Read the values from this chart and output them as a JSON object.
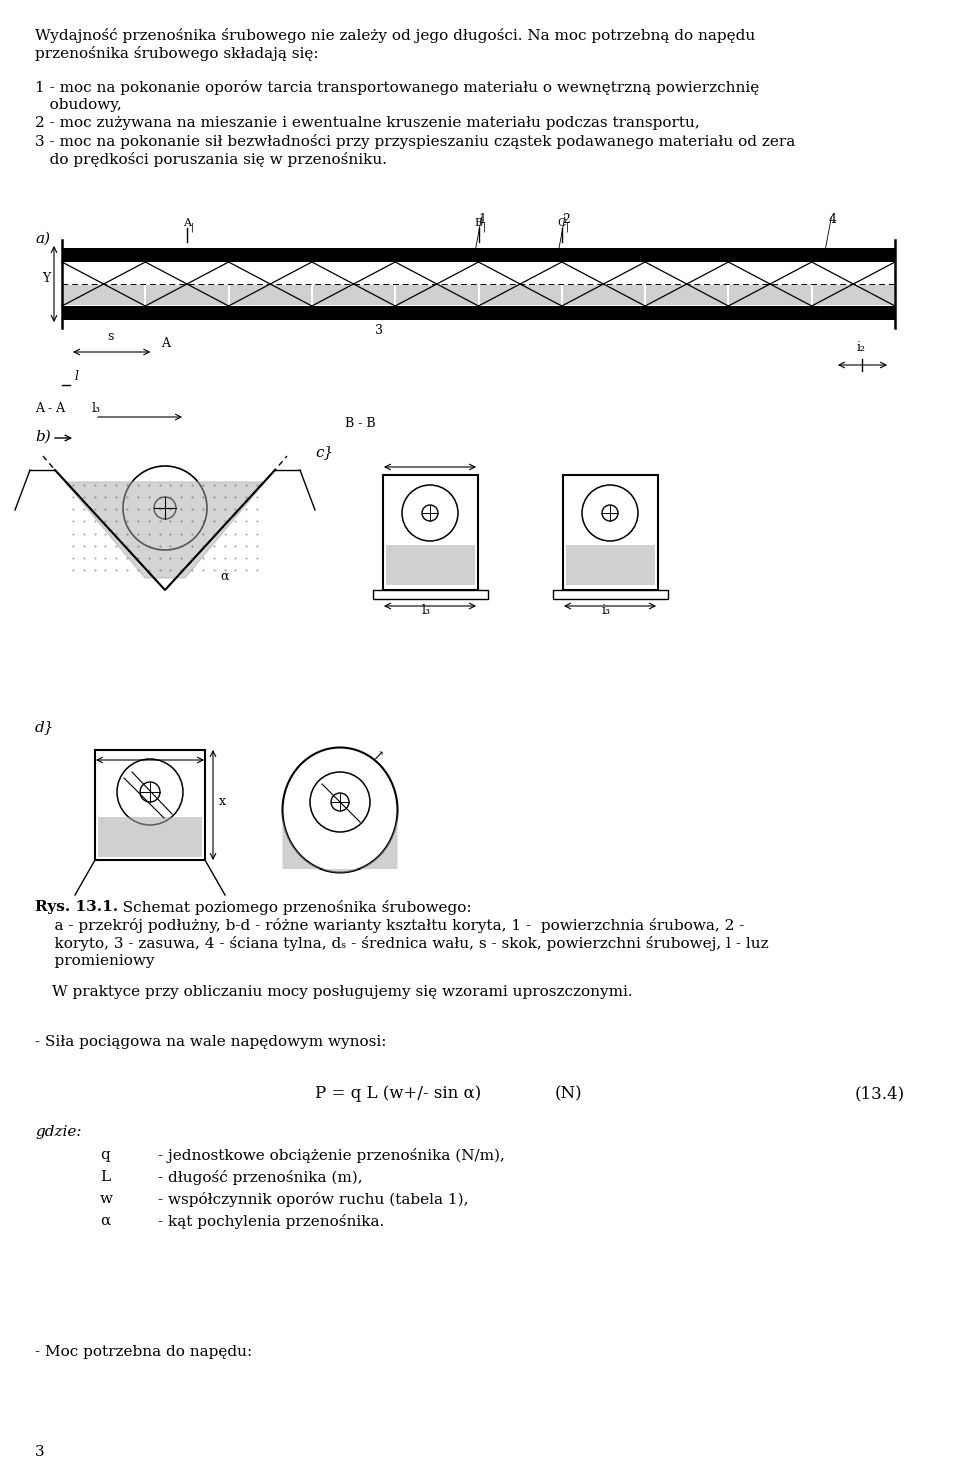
{
  "bg_color": "#ffffff",
  "text_color": "#000000",
  "page_width": 9.6,
  "page_height": 14.64,
  "dpi": 100,
  "top_paragraph_line1": "Wydajność przenośnika śrubowego nie zależy od jego długości. Na moc potrzebną do napędu",
  "top_paragraph_line2": "przenośnika śrubowego składają się:",
  "item1_line1": "1 - moc na pokonanie oporów tarcia transportowanego materiału o wewnętrzną powierzchnię",
  "item1_line2": "   obudowy,",
  "item2": "2 - moc zużywana na mieszanie i ewentualne kruszenie materiału podczas transportu,",
  "item3_line1": "3 - moc na pokonanie sił bezwładności przy przyspieszaniu cząstek podawanego materiału od zera",
  "item3_line2": "   do prędkości poruszania się w przenośniku.",
  "caption_bold": "Rys. 13.1.",
  "caption_rest": "  Schemat poziomego przenośnika śrubowego:",
  "caption_line2": "    a - przekrój podłużny, b-d - różne warianty kształtu koryta, 1 -  powierzchnia śrubowa, 2 -",
  "caption_line3": "    koryto, 3 - zasuwa, 4 - ściana tylna, dₛ - średnica wału, s - skok, powierzchni śrubowej, l - luz",
  "caption_line4": "    promieniowy",
  "paragraph2": "W praktyce przy obliczaniu mocy posługujemy się wzorami uproszczonymi.",
  "sila_text": "- Siła pociągowa na wale napędowym wynosi:",
  "formula": "P = q L (w+/- sin α)",
  "formula_unit": "(N)",
  "formula_number": "(13.4)",
  "gdzie_text": "gdzie:",
  "var_q": "q",
  "desc_q": "- jednostkowe obciążenie przenośnika (N/m),",
  "var_L": "L",
  "desc_L": "- długość przenośnika (m),",
  "var_w": "w",
  "desc_w": "- współczynnik oporów ruchu (tabela 1),",
  "var_a": "α",
  "desc_a": "- kąt pochylenia przenośnika.",
  "moc_text": "- Moc potrzebna do napędu:",
  "page_number": "3",
  "font_size_body": 11,
  "font_size_formula": 12
}
